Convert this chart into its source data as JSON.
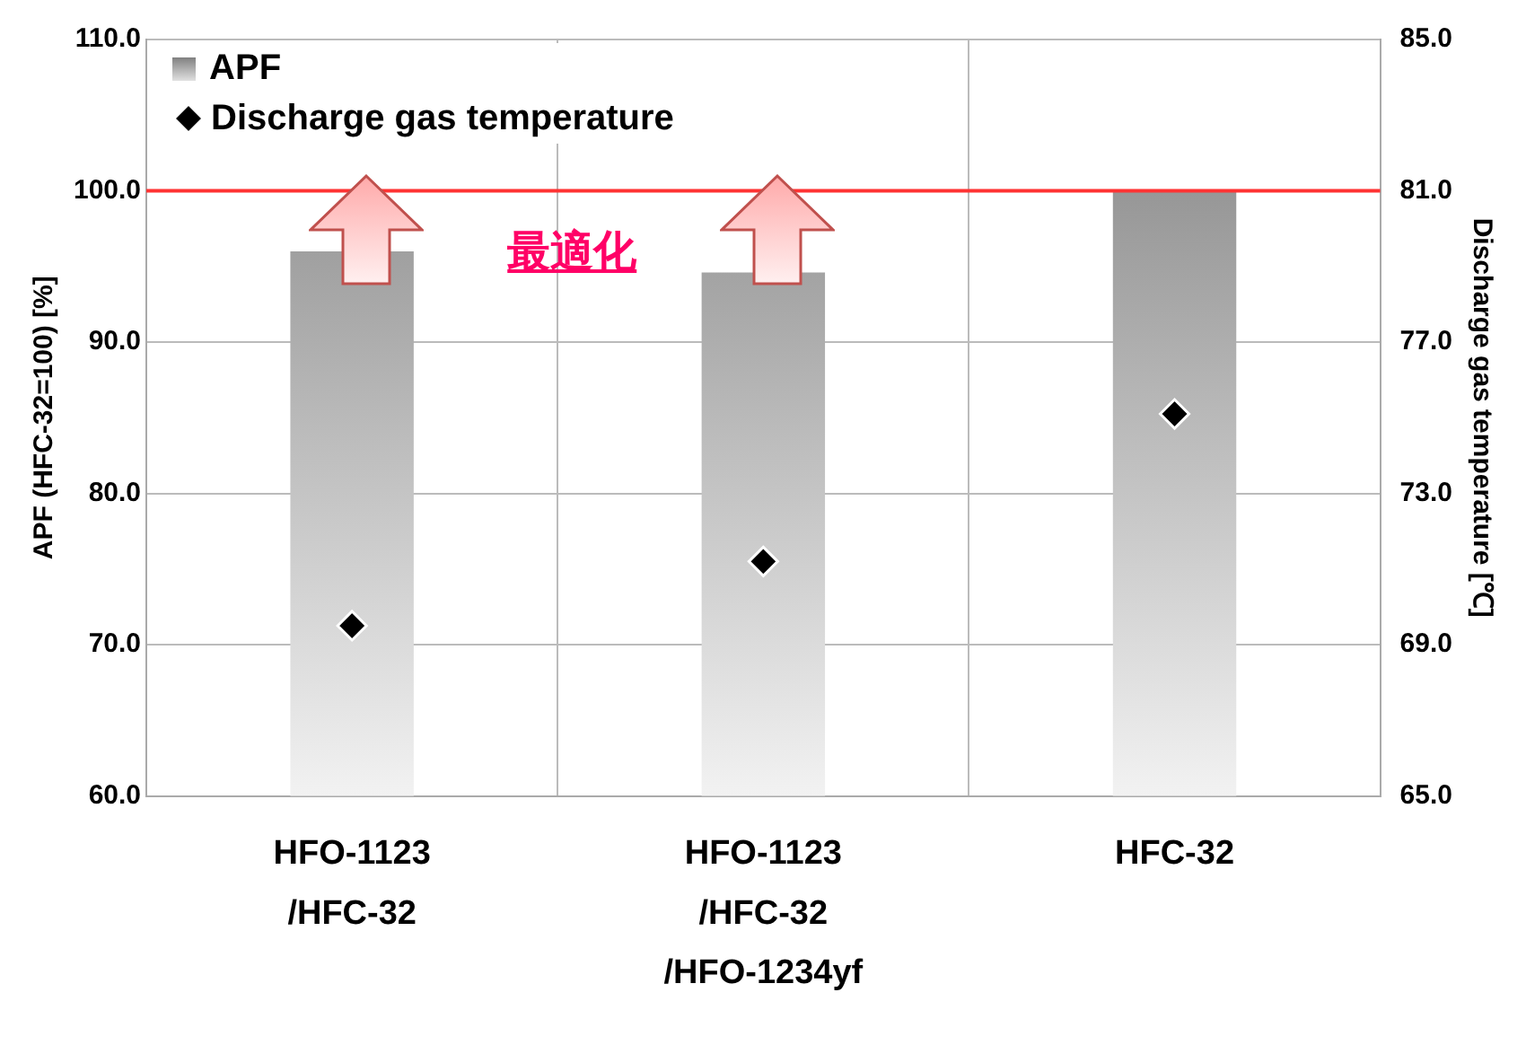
{
  "chart_data": {
    "type": "bar",
    "categories": [
      "HFO-1123\n/HFC-32",
      "HFO-1123\n/HFC-32\n/HFO-1234yf",
      "HFC-32"
    ],
    "series": [
      {
        "name": "APF",
        "color": "#808080",
        "values": [
          96.0,
          94.6,
          100.0
        ]
      },
      {
        "name": "Discharge gas temperature",
        "type": "scatter",
        "axis": "y2",
        "color": "#000000",
        "marker": "diamond",
        "values": [
          69.5,
          71.2,
          75.1
        ]
      }
    ],
    "ylabel": "APF (HFC-32=100) [%]",
    "y2label": "Discharge gas temperature [℃]",
    "ylim": [
      60,
      110
    ],
    "yticks": [
      {
        "value": 60,
        "label": "60.0"
      },
      {
        "value": 70,
        "label": "70.0"
      },
      {
        "value": 80,
        "label": "80.0"
      },
      {
        "value": 90,
        "label": "90.0"
      },
      {
        "value": 100,
        "label": "100.0"
      },
      {
        "value": 110,
        "label": "110.0"
      }
    ],
    "y2lim": [
      65,
      85
    ],
    "y2ticks": [
      {
        "value": 65,
        "label": "65.0"
      },
      {
        "value": 69,
        "label": "69.0"
      },
      {
        "value": 73,
        "label": "73.0"
      },
      {
        "value": 77,
        "label": "77.0"
      },
      {
        "value": 81,
        "label": "81.0"
      },
      {
        "value": 85,
        "label": "85.0"
      }
    ],
    "ref_lines": [
      {
        "axis": "y",
        "value": 100,
        "color": "#ff3333"
      }
    ],
    "annotations": [
      "最適化"
    ],
    "grid": true,
    "legend": "top left"
  }
}
